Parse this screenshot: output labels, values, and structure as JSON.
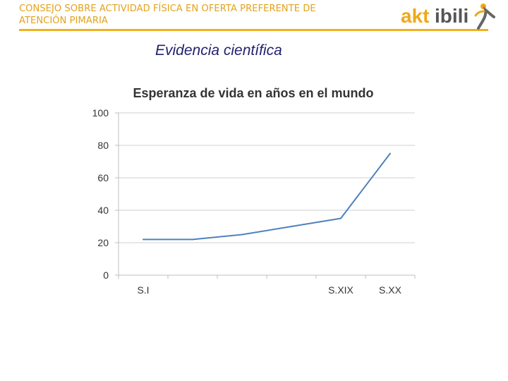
{
  "header": {
    "title_line1": "CONSEJO SOBRE ACTIVIDAD FÍSICA EN OFERTA PREFERENTE DE",
    "title_line2": "ATENCIÓN PIMARIA",
    "accent_color": "#f0b020"
  },
  "logo": {
    "text_akt": "akt",
    "text_ibili": "ibili",
    "colors": {
      "akt": "#f0a818",
      "ibili": "#555555"
    }
  },
  "slide": {
    "title": "Evidencia científica"
  },
  "chart_data": {
    "type": "line",
    "title": "Esperanza de vida en años en el mundo",
    "xlabel": "",
    "ylabel": "",
    "categories": [
      "S.I",
      "",
      "",
      "",
      "S.XIX",
      "S.XX"
    ],
    "series": [
      {
        "values": [
          22,
          22,
          25,
          30,
          35,
          75
        ],
        "color": "#4f81bd"
      }
    ],
    "ylim": [
      0,
      100
    ],
    "yticks": [
      0,
      20,
      40,
      60,
      80,
      100
    ],
    "grid": true
  }
}
